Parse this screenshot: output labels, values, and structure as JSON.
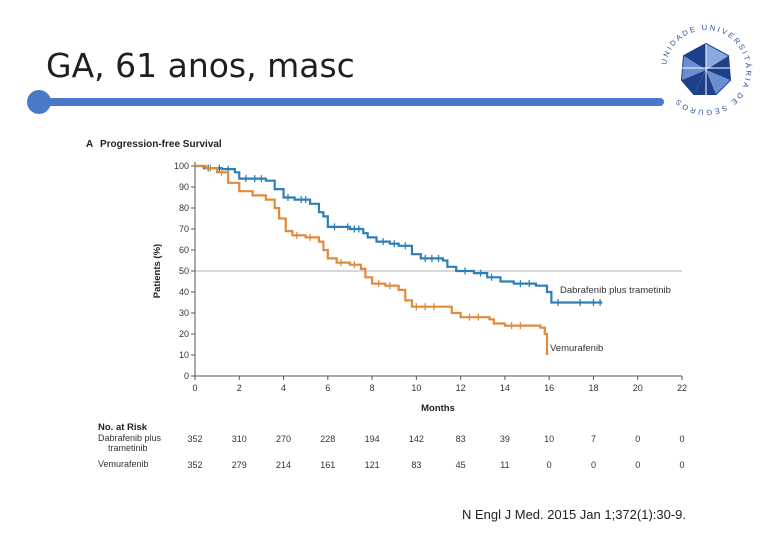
{
  "slide": {
    "title": "GA, 61 anos, masc",
    "citation": "N Engl J Med. 2015 Jan 1;372(1):30-9.",
    "logo_text": "UNIDADE UNIVERSITÁRIA DE SEGUROS"
  },
  "colors": {
    "accent": "#4a7ac7",
    "dabrafenib": "#2f7fb5",
    "vemurafenib": "#e08a3c"
  },
  "chart_data": {
    "type": "line",
    "panel_label": "A",
    "title": "Progression-free Survival",
    "xlabel": "Months",
    "ylabel": "Patients (%)",
    "xlim": [
      0,
      22
    ],
    "ylim": [
      0,
      100
    ],
    "x_ticks": [
      0,
      2,
      4,
      6,
      8,
      10,
      12,
      14,
      16,
      18,
      20,
      22
    ],
    "y_ticks": [
      0,
      10,
      20,
      30,
      40,
      50,
      60,
      70,
      80,
      90,
      100
    ],
    "reference_line": 50,
    "series": [
      {
        "name": "Dabrafenib plus trametinib",
        "label": "Dabrafenib plus trametinib",
        "color": "#2f7fb5",
        "points": [
          [
            0,
            100
          ],
          [
            0.4,
            99
          ],
          [
            1.2,
            98.5
          ],
          [
            1.8,
            97
          ],
          [
            2.0,
            94
          ],
          [
            3.2,
            93
          ],
          [
            3.6,
            89
          ],
          [
            4.0,
            85
          ],
          [
            4.5,
            84
          ],
          [
            5.2,
            82
          ],
          [
            5.6,
            78
          ],
          [
            5.8,
            76
          ],
          [
            6.0,
            71
          ],
          [
            6.6,
            71
          ],
          [
            7.0,
            70
          ],
          [
            7.6,
            68
          ],
          [
            7.8,
            66
          ],
          [
            8.2,
            64
          ],
          [
            8.8,
            63
          ],
          [
            9.2,
            62
          ],
          [
            9.8,
            58
          ],
          [
            10.2,
            56
          ],
          [
            11.2,
            55
          ],
          [
            11.4,
            52
          ],
          [
            11.8,
            50
          ],
          [
            12.6,
            49
          ],
          [
            13.2,
            47
          ],
          [
            13.8,
            45
          ],
          [
            14.4,
            44
          ],
          [
            15.0,
            44
          ],
          [
            15.4,
            43
          ],
          [
            15.9,
            40
          ],
          [
            16.1,
            35
          ],
          [
            17.0,
            35
          ],
          [
            18.4,
            35
          ]
        ],
        "censor_x": [
          0.6,
          1.1,
          1.5,
          2.3,
          2.7,
          3.0,
          4.2,
          4.8,
          5.0,
          6.3,
          6.9,
          7.2,
          7.4,
          8.5,
          9.0,
          9.5,
          10.4,
          10.7,
          11.0,
          12.2,
          12.9,
          13.4,
          14.7,
          15.1,
          16.4,
          17.4,
          18.0,
          18.3
        ]
      },
      {
        "name": "Vemurafenib",
        "label": "Vemurafenib",
        "color": "#e08a3c",
        "points": [
          [
            0,
            100
          ],
          [
            0.5,
            99
          ],
          [
            1.0,
            97
          ],
          [
            1.5,
            92
          ],
          [
            2.0,
            88
          ],
          [
            2.6,
            86
          ],
          [
            3.2,
            84
          ],
          [
            3.6,
            80
          ],
          [
            3.8,
            75
          ],
          [
            4.1,
            69
          ],
          [
            4.4,
            67
          ],
          [
            5.0,
            66
          ],
          [
            5.6,
            64
          ],
          [
            5.8,
            60
          ],
          [
            6.0,
            56
          ],
          [
            6.4,
            54
          ],
          [
            7.0,
            53
          ],
          [
            7.5,
            51
          ],
          [
            7.7,
            47
          ],
          [
            8.0,
            44
          ],
          [
            8.6,
            43
          ],
          [
            9.2,
            41
          ],
          [
            9.5,
            36
          ],
          [
            9.8,
            33
          ],
          [
            11.2,
            33
          ],
          [
            11.6,
            30
          ],
          [
            12.0,
            28
          ],
          [
            13.3,
            27
          ],
          [
            13.5,
            25
          ],
          [
            14.0,
            24
          ],
          [
            15.2,
            24
          ],
          [
            15.6,
            23
          ],
          [
            15.8,
            20
          ],
          [
            15.9,
            10
          ]
        ],
        "censor_x": [
          0.7,
          1.2,
          4.6,
          5.2,
          6.6,
          7.2,
          8.3,
          8.8,
          10.0,
          10.4,
          10.8,
          12.4,
          12.8,
          14.3,
          14.7
        ]
      }
    ],
    "risk_table": {
      "header": "No. at Risk",
      "rows": [
        {
          "label_lines": [
            "Dabrafenib plus",
            "trametinib"
          ],
          "values": [
            "352",
            "310",
            "270",
            "228",
            "194",
            "142",
            "83",
            "39",
            "10",
            "7",
            "0",
            "0"
          ]
        },
        {
          "label_lines": [
            "Vemurafenib"
          ],
          "values": [
            "352",
            "279",
            "214",
            "161",
            "121",
            "83",
            "45",
            "11",
            "0",
            "0",
            "0",
            "0"
          ]
        }
      ]
    }
  }
}
